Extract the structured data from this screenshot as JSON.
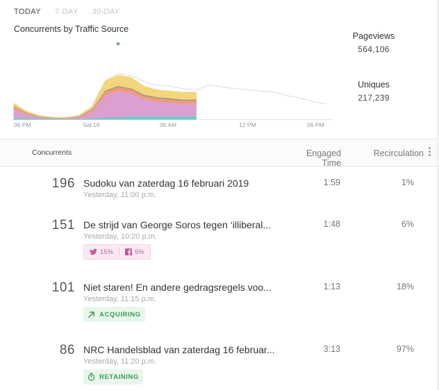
{
  "tabs": [
    {
      "label": "TODAY",
      "active": true
    },
    {
      "label": "7-DAY",
      "active": false
    },
    {
      "label": "30-DAY",
      "active": false
    }
  ],
  "chart_data": {
    "type": "area",
    "title": "Concurrents by Traffic Source",
    "x_tick_labels": [
      "06 PM",
      "Sat 16",
      "06 AM",
      "12 PM",
      "06 PM"
    ],
    "colors": {
      "teal": "#66cccc",
      "pink": "#dba0d0",
      "orange": "#f09d70",
      "gray": "#999999",
      "yellow": "#f3d57b",
      "previous": "#d9d9d9"
    },
    "series": [
      {
        "name": "",
        "color": "#66cccc",
        "values": [
          3,
          2,
          1.5,
          1,
          1,
          1,
          2,
          3,
          4,
          5,
          5,
          5,
          5,
          5,
          5
        ]
      },
      {
        "name": "",
        "color": "#dba0d0",
        "values": [
          15,
          7,
          2,
          1,
          1,
          3,
          12,
          38,
          45,
          40,
          30,
          26,
          24,
          22,
          22
        ]
      },
      {
        "name": "",
        "color": "#f09d70",
        "values": [
          4,
          2,
          1,
          0.5,
          0.5,
          1,
          3,
          6,
          6,
          6,
          5,
          5,
          5,
          5,
          5
        ]
      },
      {
        "name": "",
        "color": "#999999",
        "values": [
          1,
          0.5,
          0.5,
          0.3,
          0.3,
          0.5,
          1,
          2,
          2,
          2,
          2,
          2,
          2,
          2,
          2
        ]
      },
      {
        "name": "",
        "color": "#f3d57b",
        "values": [
          4,
          2,
          1,
          0.5,
          0.5,
          1,
          3,
          16,
          18,
          18,
          14,
          12,
          12,
          12,
          12
        ]
      }
    ],
    "previous_day_line": [
      27,
      13,
      6,
      4,
      3,
      7,
      22,
      65,
      78,
      74,
      64,
      58,
      56,
      52,
      50,
      58,
      55,
      52,
      50,
      48,
      46,
      40,
      36,
      30,
      26
    ]
  },
  "stats": {
    "pageviews_label": "Pageviews",
    "pageviews_value": "564,106",
    "uniques_label": "Uniques",
    "uniques_value": "217,239"
  },
  "table": {
    "headers": {
      "concurrents": "Concurrents",
      "engaged": "Engaged Time",
      "recirculation": "Recirculation"
    },
    "rows": [
      {
        "count": "196",
        "title": "Sudoku van zaterdag 16 februari 2019",
        "date": "Yesterday, 11:00 p.m.",
        "engaged": "1:59",
        "recirc": "1%"
      },
      {
        "count": "151",
        "title": "De strijd van George Soros tegen ‘illiberal...",
        "date": "Yesterday, 10:20 p.m.",
        "engaged": "1:48",
        "recirc": "6%",
        "twitter": "15%",
        "facebook": "5%"
      },
      {
        "count": "101",
        "title": "Niet staren! En andere gedragsregels voo...",
        "date": "Yesterday, 11:15 p.m.",
        "engaged": "1:13",
        "recirc": "18%",
        "status": "ACQUIRING"
      },
      {
        "count": "86",
        "title": "NRC Handelsblad van zaterdag 16 februar...",
        "date": "Yesterday, 11:20 p.m.",
        "engaged": "3:13",
        "recirc": "97%",
        "status": "RETAINING"
      }
    ]
  }
}
